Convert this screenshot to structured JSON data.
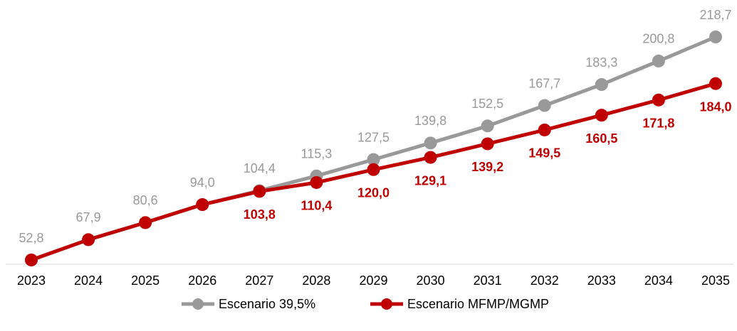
{
  "chart_data": {
    "type": "line",
    "categories": [
      "2023",
      "2024",
      "2025",
      "2026",
      "2027",
      "2028",
      "2029",
      "2030",
      "2031",
      "2032",
      "2033",
      "2034",
      "2035"
    ],
    "series": [
      {
        "name": "Escenario 39,5%",
        "color": "#999999",
        "values": [
          52.8,
          67.9,
          80.6,
          94.0,
          104.4,
          115.3,
          127.5,
          139.8,
          152.5,
          167.7,
          183.3,
          200.8,
          218.7
        ],
        "value_labels": [
          "52,8",
          "67,9",
          "80,6",
          "94,0",
          "104,4",
          "115,3",
          "127,5",
          "139,8",
          "152,5",
          "167,7",
          "183,3",
          "200,8",
          "218,7"
        ]
      },
      {
        "name": "Escenario MFMP/MGMP",
        "color": "#c00000",
        "values": [
          52.8,
          67.9,
          80.6,
          94.0,
          103.8,
          110.4,
          120.0,
          129.1,
          139.2,
          149.5,
          160.5,
          171.8,
          184.0
        ],
        "value_labels": [
          null,
          null,
          null,
          null,
          "103,8",
          "110,4",
          "120,0",
          "129,1",
          "139,2",
          "149,5",
          "160,5",
          "171,8",
          "184,0"
        ]
      }
    ],
    "legend": "bottom"
  }
}
